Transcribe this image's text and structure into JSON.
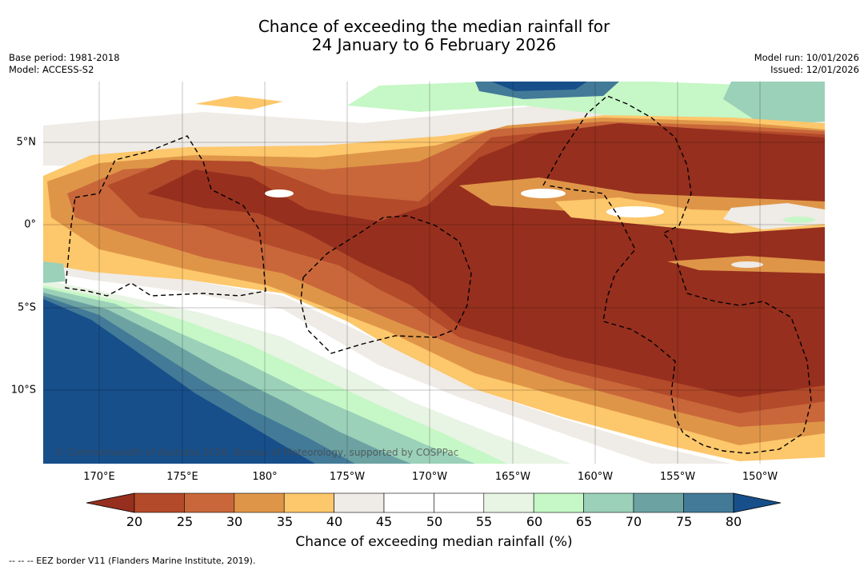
{
  "title": {
    "line1": "Chance of exceeding the median rainfall for",
    "line2": "24 January to 6 February 2026"
  },
  "meta_left": {
    "base_period": "Base period: 1981-2018",
    "model": "Model: ACCESS-S2"
  },
  "meta_right": {
    "model_run": "Model run: 10/01/2026",
    "issued": "Issued: 12/01/2026"
  },
  "map": {
    "longitude_range": [
      167,
      214.3
    ],
    "latitude_range": [
      -14.5,
      8.5
    ],
    "x_ticks": [
      {
        "lon": 170,
        "label": "170°E"
      },
      {
        "lon": 175,
        "label": "175°E"
      },
      {
        "lon": 180,
        "label": "180°"
      },
      {
        "lon": 185,
        "label": "175°W"
      },
      {
        "lon": 190,
        "label": "170°W"
      },
      {
        "lon": 195,
        "label": "165°W"
      },
      {
        "lon": 200,
        "label": "160°W"
      },
      {
        "lon": 205,
        "label": "155°W"
      },
      {
        "lon": 210,
        "label": "150°W"
      }
    ],
    "y_ticks": [
      {
        "lat": 5,
        "label": "5°N"
      },
      {
        "lat": 0,
        "label": "0°"
      },
      {
        "lat": -5,
        "label": "5°S"
      },
      {
        "lat": -10,
        "label": "10°S"
      }
    ],
    "copyright": "© Commonwealth of Australia 2026, Bureau of Meteorology, supported by COSPPac"
  },
  "colorbar": {
    "label": "Chance of exceeding median rainfall (%)",
    "ticks": [
      "20",
      "25",
      "30",
      "35",
      "40",
      "45",
      "50",
      "55",
      "60",
      "65",
      "70",
      "75",
      "80"
    ],
    "colors": [
      "#962f1e",
      "#b34a2a",
      "#c9673a",
      "#df9548",
      "#fdc76b",
      "#efebe6",
      "#ffffff",
      "#ffffff",
      "#e8f4e4",
      "#c6f7c6",
      "#9bd0b9",
      "#6ca2a2",
      "#437a98",
      "#174f8b"
    ]
  },
  "footnote": "--  --  -- EEZ border V11 (Flanders Marine Institute, 2019)."
}
